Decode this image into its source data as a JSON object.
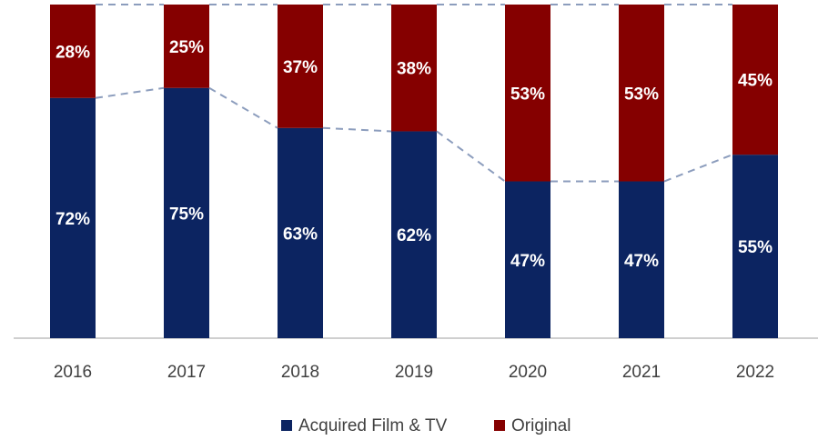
{
  "chart_data": {
    "type": "stacked_bar",
    "categories": [
      "2016",
      "2017",
      "2018",
      "2019",
      "2020",
      "2021",
      "2022"
    ],
    "series": [
      {
        "name": "Acquired Film & TV",
        "color": "#0c2461",
        "values": [
          72,
          75,
          63,
          62,
          47,
          47,
          55
        ],
        "value_labels": [
          "72%",
          "75%",
          "63%",
          "62%",
          "47%",
          "47%",
          "55%"
        ]
      },
      {
        "name": "Original",
        "color": "#850000",
        "values": [
          28,
          25,
          37,
          38,
          53,
          53,
          45
        ],
        "value_labels": [
          "28%",
          "25%",
          "37%",
          "38%",
          "53%",
          "53%",
          "45%"
        ]
      }
    ],
    "ylim": [
      0,
      100
    ],
    "grid": false,
    "legend": "bottom"
  }
}
